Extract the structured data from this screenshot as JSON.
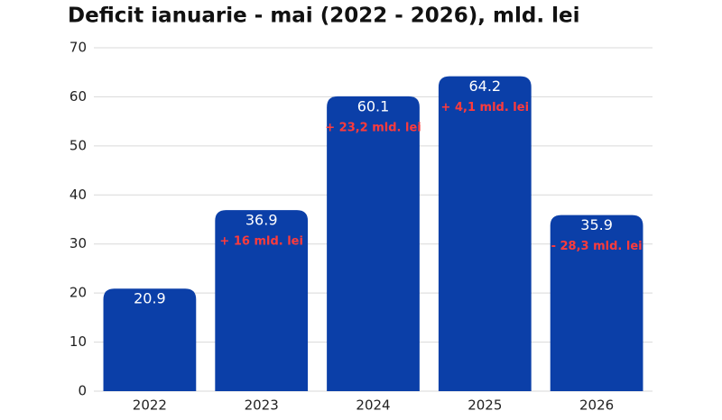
{
  "chart_data": {
    "type": "bar",
    "title": "Deficit ianuarie - mai (2022 - 2026), mld. lei",
    "categories": [
      "2022",
      "2023",
      "2024",
      "2025",
      "2026"
    ],
    "values": [
      20.9,
      36.9,
      60.1,
      64.2,
      35.9
    ],
    "annotations": [
      null,
      "+ 16 mld. lei",
      "+ 23,2 mld. lei",
      "+ 4,1 mld. lei",
      "- 28,3 mld. lei"
    ],
    "color": "#0b3fa8",
    "ylim": [
      0,
      70
    ],
    "yticks": [
      0,
      10,
      20,
      30,
      40,
      50,
      60,
      70
    ],
    "grid": true
  }
}
